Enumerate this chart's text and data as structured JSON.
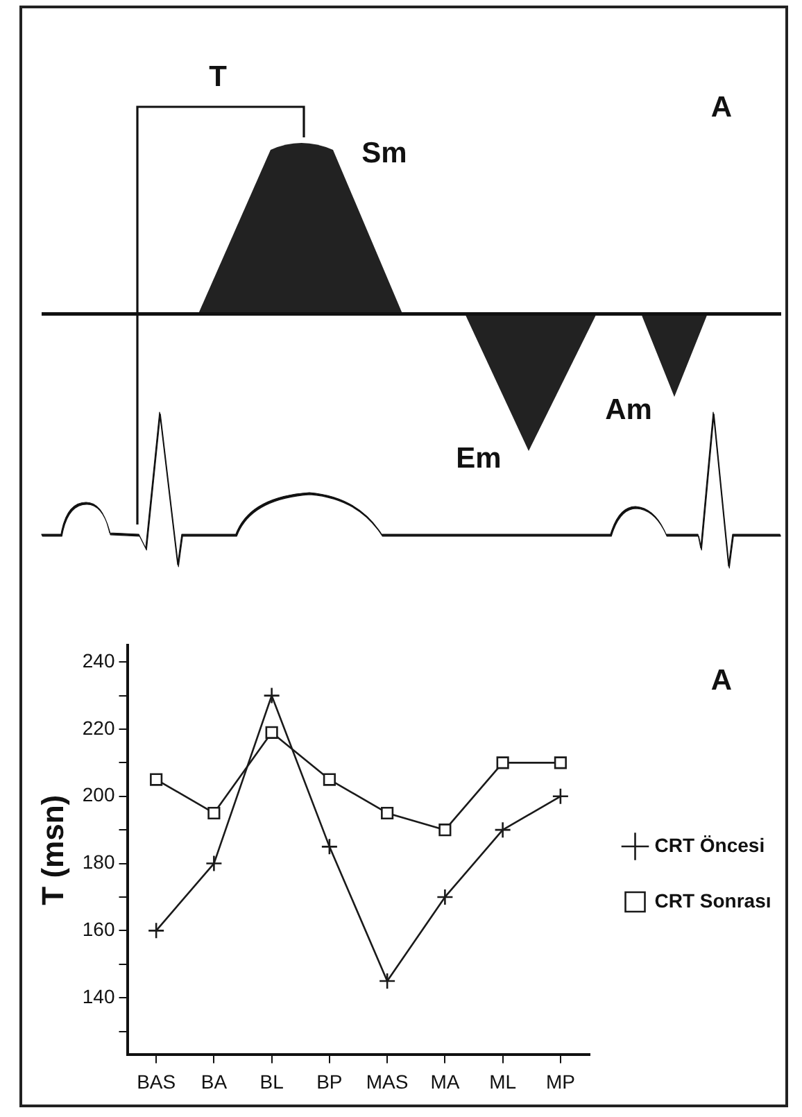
{
  "chart_data": {
    "type": "line",
    "ylabel": "T (msn)",
    "annotations": [
      "T",
      "A",
      "Sm",
      "Am",
      "Em",
      "A"
    ],
    "categories": [
      "BAS",
      "BA",
      "BL",
      "BP",
      "MAS",
      "MA",
      "ML",
      "MP"
    ],
    "series": [
      {
        "name": "CRT Öncesi",
        "color": "#1a1a1a",
        "marker": "cross",
        "values": [
          160,
          180,
          230,
          185,
          145,
          170,
          190,
          200
        ]
      },
      {
        "name": "CRT Sonrası",
        "color": "#1a1a1a",
        "marker": "square",
        "values": [
          205,
          195,
          219,
          205,
          195,
          190,
          210,
          210
        ]
      }
    ],
    "ylim": [
      123,
      245
    ],
    "yticks": [
      {
        "value": 130,
        "label": null
      },
      140,
      {
        "value": 150,
        "label": null
      },
      160,
      {
        "value": 170,
        "label": null
      },
      180,
      {
        "value": 190,
        "label": null
      },
      200,
      {
        "value": 210,
        "label": null
      },
      220,
      {
        "value": 230,
        "label": null
      },
      240
    ],
    "grid": false,
    "legend": "right",
    "line_style": "solid"
  }
}
